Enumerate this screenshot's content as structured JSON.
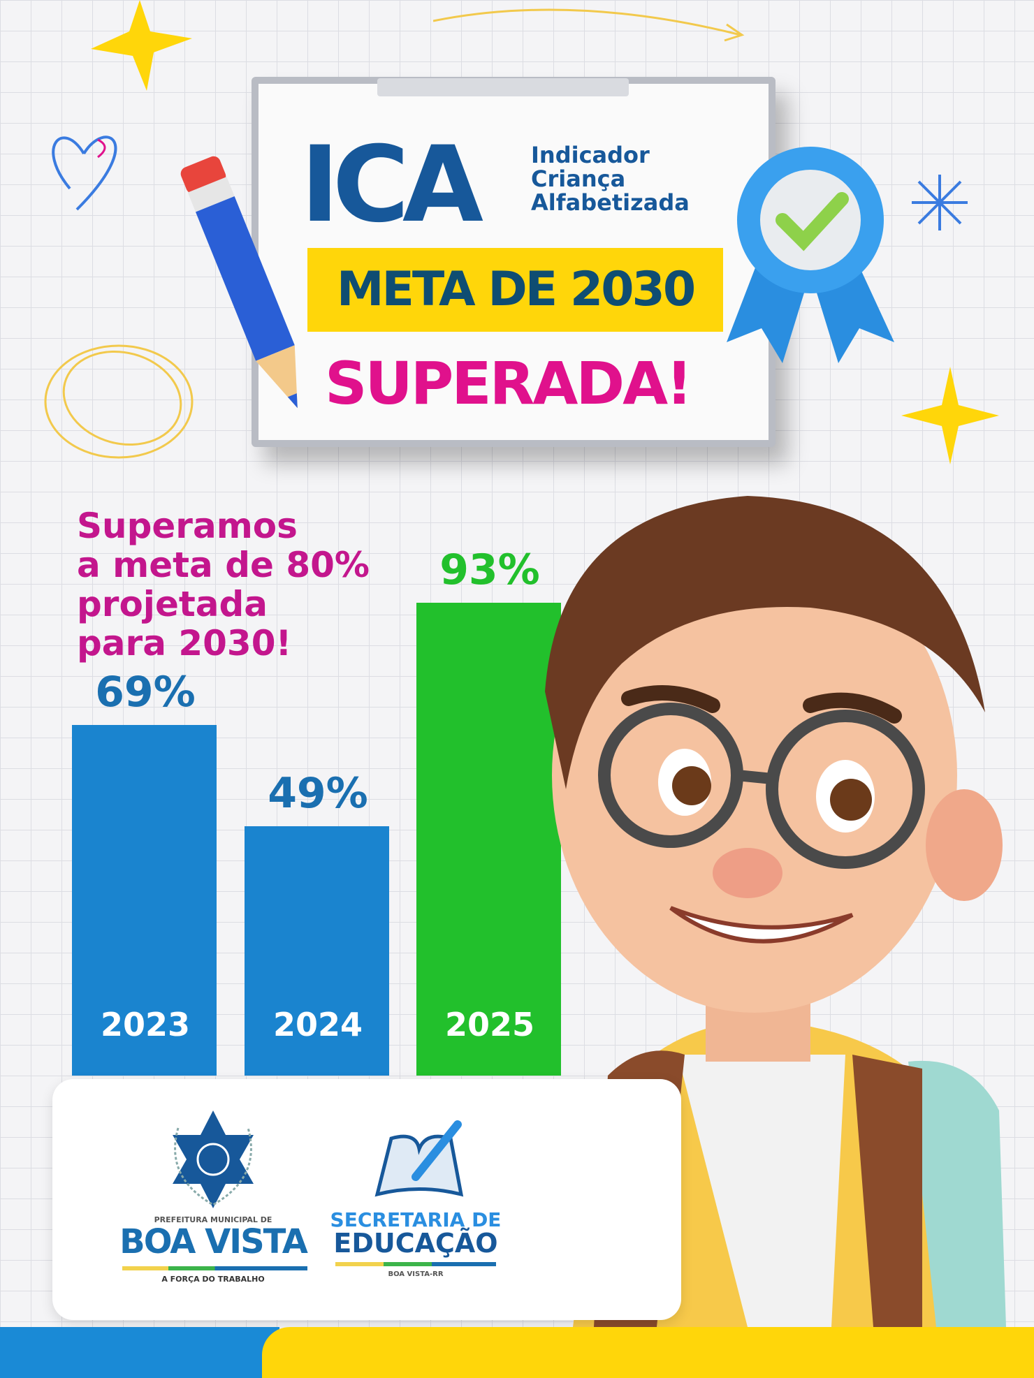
{
  "header": {
    "acronym": "ICA",
    "acronym_expansion": [
      "Indicador",
      "Criança",
      "Alfabetizada"
    ],
    "goal_banner": "META DE 2030",
    "exclaim": "SUPERADA!"
  },
  "headline": [
    "Superamos",
    "a meta de 80%",
    "projetada",
    "para 2030!"
  ],
  "chart_data": {
    "type": "bar",
    "categories": [
      "2023",
      "2024",
      "2025"
    ],
    "values": [
      69,
      49,
      93
    ],
    "data_labels": [
      "69%",
      "49%",
      "93%"
    ],
    "unit": "%",
    "ylim": [
      0,
      100
    ],
    "grid": false,
    "colors": [
      "#1a84cf",
      "#1a84cf",
      "#22c02c"
    ],
    "label_colors": [
      "#1a6fb0",
      "#1a6fb0",
      "#22c02c"
    ]
  },
  "logos": {
    "city": {
      "top": "PREFEITURA MUNICIPAL DE",
      "name": "BOA VISTA",
      "slogan": "A FORÇA DO TRABALHO"
    },
    "secretaria": {
      "line1": "SECRETARIA DE",
      "line2": "EDUCAÇÃO",
      "sub": "BOA VISTA-RR"
    }
  },
  "icons": [
    "pencil-icon",
    "award-ribbon-icon",
    "check-icon",
    "star-icon",
    "heart-doodle-icon",
    "sparkle-icon"
  ],
  "colors": {
    "blue": "#17589a",
    "yellow": "#ffd60a",
    "magenta": "#e0118c",
    "green": "#22c02c"
  }
}
